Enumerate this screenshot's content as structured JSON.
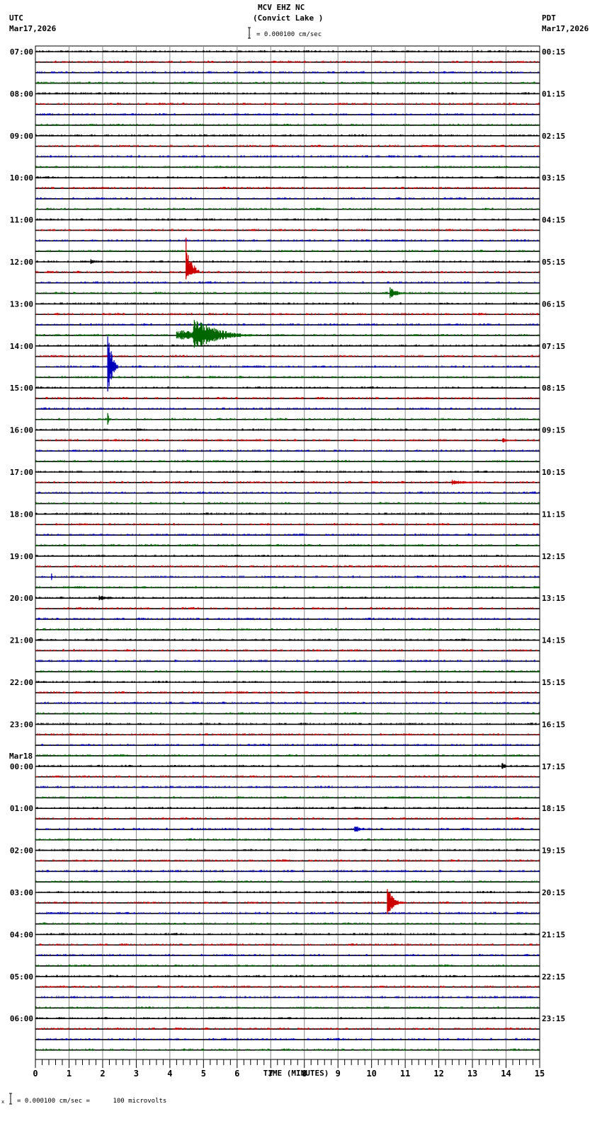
{
  "header": {
    "station": "MCV EHZ NC",
    "location": "(Convict Lake )",
    "left_tz": "UTC",
    "left_date": "Mar17,2026",
    "right_tz": "PDT",
    "right_date": "Mar17,2026",
    "scale_text": "= 0.000100 cm/sec"
  },
  "footer": {
    "scale_text": "= 0.000100 cm/sec =      100 microvolts",
    "prefix": "x"
  },
  "colors": {
    "trace_cycle": [
      "#000000",
      "#cc0000",
      "#0000bb",
      "#006600"
    ],
    "grid": "#888888"
  },
  "chart_data": {
    "type": "line",
    "title": "MCV EHZ NC (Convict Lake )",
    "xlabel": "TIME (MINUTES)",
    "ylabel": "",
    "x_ticks": [
      "0",
      "1",
      "2",
      "3",
      "4",
      "5",
      "6",
      "7",
      "8",
      "9",
      "10",
      "11",
      "12",
      "13",
      "14",
      "15"
    ],
    "xlim": [
      0,
      15
    ],
    "rows_per_hour": 4,
    "row_count": 96,
    "grid": true,
    "left_labels": [
      {
        "row": 0,
        "text": "07:00"
      },
      {
        "row": 4,
        "text": "08:00"
      },
      {
        "row": 8,
        "text": "09:00"
      },
      {
        "row": 12,
        "text": "10:00"
      },
      {
        "row": 16,
        "text": "11:00"
      },
      {
        "row": 20,
        "text": "12:00"
      },
      {
        "row": 24,
        "text": "13:00"
      },
      {
        "row": 28,
        "text": "14:00"
      },
      {
        "row": 32,
        "text": "15:00"
      },
      {
        "row": 36,
        "text": "16:00"
      },
      {
        "row": 40,
        "text": "17:00"
      },
      {
        "row": 44,
        "text": "18:00"
      },
      {
        "row": 48,
        "text": "19:00"
      },
      {
        "row": 52,
        "text": "20:00"
      },
      {
        "row": 56,
        "text": "21:00"
      },
      {
        "row": 60,
        "text": "22:00"
      },
      {
        "row": 64,
        "text": "23:00"
      },
      {
        "row": 68,
        "text": "00:00",
        "date": "Mar18"
      },
      {
        "row": 72,
        "text": "01:00"
      },
      {
        "row": 76,
        "text": "02:00"
      },
      {
        "row": 80,
        "text": "03:00"
      },
      {
        "row": 84,
        "text": "04:00"
      },
      {
        "row": 88,
        "text": "05:00"
      },
      {
        "row": 92,
        "text": "06:00"
      }
    ],
    "right_labels": [
      {
        "row": 0,
        "text": "00:15"
      },
      {
        "row": 4,
        "text": "01:15"
      },
      {
        "row": 8,
        "text": "02:15"
      },
      {
        "row": 12,
        "text": "03:15"
      },
      {
        "row": 16,
        "text": "04:15"
      },
      {
        "row": 20,
        "text": "05:15"
      },
      {
        "row": 24,
        "text": "06:15"
      },
      {
        "row": 28,
        "text": "07:15"
      },
      {
        "row": 32,
        "text": "08:15"
      },
      {
        "row": 36,
        "text": "09:15"
      },
      {
        "row": 40,
        "text": "10:15"
      },
      {
        "row": 44,
        "text": "11:15"
      },
      {
        "row": 48,
        "text": "12:15"
      },
      {
        "row": 52,
        "text": "13:15"
      },
      {
        "row": 56,
        "text": "14:15"
      },
      {
        "row": 60,
        "text": "15:15"
      },
      {
        "row": 64,
        "text": "16:15"
      },
      {
        "row": 68,
        "text": "17:15"
      },
      {
        "row": 72,
        "text": "18:15"
      },
      {
        "row": 76,
        "text": "19:15"
      },
      {
        "row": 80,
        "text": "20:15"
      },
      {
        "row": 84,
        "text": "21:15"
      },
      {
        "row": 88,
        "text": "22:15"
      },
      {
        "row": 92,
        "text": "23:15"
      }
    ],
    "events": [
      {
        "row": 20,
        "minute": 1.65,
        "amp": 6,
        "dur": 0.2
      },
      {
        "row": 21,
        "minute": 4.48,
        "amp": 58,
        "dur": 0.4,
        "clip_down": true
      },
      {
        "row": 23,
        "minute": 10.55,
        "amp": 9,
        "dur": 0.6
      },
      {
        "row": 27,
        "minute": 4.7,
        "amp": 28,
        "dur": 1.8,
        "pre": 0.5
      },
      {
        "row": 28,
        "minute": 2.15,
        "amp": 0,
        "dur": 0
      },
      {
        "row": 30,
        "minute": 2.15,
        "amp": 62,
        "dur": 0.3
      },
      {
        "row": 35,
        "minute": 2.15,
        "amp": 10,
        "dur": 0.1
      },
      {
        "row": 37,
        "minute": 13.9,
        "amp": 4,
        "dur": 0.4
      },
      {
        "row": 41,
        "minute": 12.4,
        "amp": 4,
        "dur": 1.5
      },
      {
        "row": 50,
        "minute": 0.48,
        "amp": 7,
        "dur": 0.05
      },
      {
        "row": 52,
        "minute": 1.9,
        "amp": 4,
        "dur": 1.0
      },
      {
        "row": 68,
        "minute": 13.88,
        "amp": 10,
        "dur": 0.2
      },
      {
        "row": 74,
        "minute": 9.5,
        "amp": 9,
        "dur": 0.3
      },
      {
        "row": 81,
        "minute": 10.47,
        "amp": 22,
        "dur": 0.5
      }
    ],
    "flat_segments": [
      {
        "row": 26,
        "from": 4.7,
        "to": 5.0
      },
      {
        "row": 27,
        "from": 0.2,
        "to": 4.2
      },
      {
        "row": 27,
        "from": 6.0,
        "to": 15
      },
      {
        "row": 32,
        "from": 0,
        "to": 6.8
      },
      {
        "row": 29,
        "from": 0,
        "to": 5.0
      },
      {
        "row": 23,
        "from": 0,
        "to": 0
      },
      {
        "row": 25,
        "from": 10.5,
        "to": 15
      }
    ]
  }
}
